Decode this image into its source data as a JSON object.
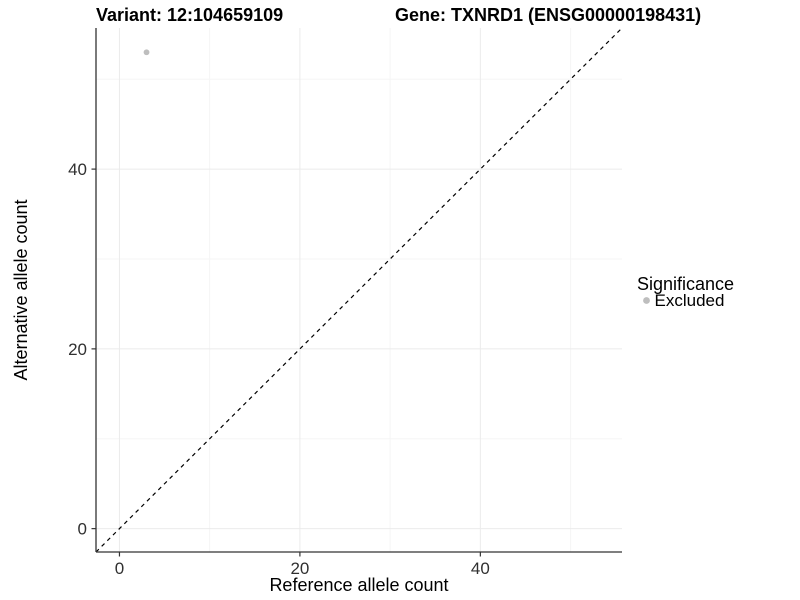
{
  "header": {
    "variant_title": "Variant: 12:104659109",
    "gene_title": "Gene: TXNRD1 (ENSG00000198431)"
  },
  "chart_data": {
    "type": "scatter",
    "titles": {
      "left": "Variant: 12:104659109",
      "right": "Gene: TXNRD1 (ENSG00000198431)"
    },
    "xlabel": "Reference allele count",
    "ylabel": "Alternative allele count",
    "xlim": [
      -2.6,
      55.7
    ],
    "ylim": [
      -2.6,
      55.7
    ],
    "x_ticks": [
      0,
      20,
      40
    ],
    "y_ticks": [
      0,
      20,
      40
    ],
    "x_minor_ticks": [
      10,
      30,
      50
    ],
    "y_minor_ticks": [
      10,
      30,
      50
    ],
    "grid": true,
    "points": [
      {
        "x": 3,
        "y": 53,
        "series": "Excluded"
      }
    ],
    "reference_line": {
      "type": "identity",
      "slope": 1,
      "intercept": 0,
      "style": "dashed"
    },
    "legend": {
      "title": "Significance",
      "position": "right",
      "entries": [
        {
          "label": "Excluded",
          "color": "#bebebe"
        }
      ]
    }
  },
  "colors": {
    "point": "#bebebe",
    "axis_line": "#333333",
    "tick_mark": "#333333",
    "grid_major": "#ebebeb",
    "grid_minor": "#f5f5f5",
    "dashed_line": "#000000",
    "background": "#ffffff"
  }
}
